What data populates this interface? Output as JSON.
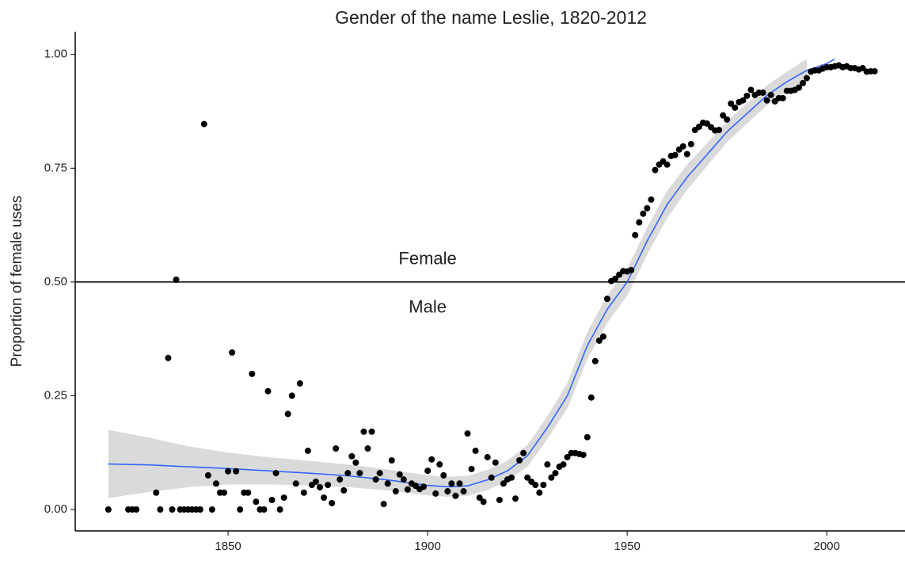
{
  "chart_data": {
    "type": "scatter",
    "title": "Gender of the name Leslie, 1820-2012",
    "y_label": "Proportion of female uses",
    "xlim": [
      1811.7,
      2019.6
    ],
    "ylim": [
      -0.047,
      1.05
    ],
    "xticks": [
      1850,
      1900,
      1950,
      2000
    ],
    "yticks": [
      {
        "value": 0,
        "label": "0.00"
      },
      {
        "value": 0.25,
        "label": "0.25"
      },
      {
        "value": 0.5,
        "label": "0.50"
      },
      {
        "value": 0.75,
        "label": "0.75"
      },
      {
        "value": 1,
        "label": "1.00"
      }
    ],
    "hline": {
      "value": 0.5,
      "above": "Female",
      "below": "Male",
      "at_x": 1900
    },
    "points": {
      "color": "#000000",
      "x": [
        1820,
        1825,
        1826,
        1827,
        1832,
        1833,
        1835,
        1836,
        1837,
        1838,
        1839,
        1840,
        1841,
        1842,
        1843,
        1844,
        1845,
        1846,
        1847,
        1848,
        1849,
        1850,
        1851,
        1852,
        1853,
        1854,
        1855,
        1856,
        1857,
        1858,
        1859,
        1860,
        1861,
        1862,
        1863,
        1864,
        1865,
        1866,
        1867,
        1868,
        1869,
        1870,
        1871,
        1872,
        1873,
        1874,
        1875,
        1876,
        1877,
        1878,
        1879,
        1880,
        1881,
        1882,
        1883,
        1884,
        1885,
        1886,
        1887,
        1888,
        1889,
        1890,
        1891,
        1892,
        1893,
        1894,
        1895,
        1896,
        1897,
        1898,
        1899,
        1900,
        1901,
        1902,
        1903,
        1904,
        1905,
        1906,
        1907,
        1908,
        1909,
        1910,
        1911,
        1912,
        1913,
        1914,
        1915,
        1916,
        1917,
        1918,
        1919,
        1920,
        1921,
        1922,
        1923,
        1924,
        1925,
        1926,
        1927,
        1928,
        1929,
        1930,
        1931,
        1932,
        1933,
        1934,
        1935,
        1936,
        1937,
        1938,
        1939,
        1940,
        1941,
        1942,
        1943,
        1944,
        1945,
        1946,
        1947,
        1948,
        1949,
        1950,
        1951,
        1952,
        1953,
        1954,
        1955,
        1956,
        1957,
        1958,
        1959,
        1960,
        1961,
        1962,
        1963,
        1964,
        1965,
        1966,
        1967,
        1968,
        1969,
        1970,
        1971,
        1972,
        1973,
        1974,
        1975,
        1976,
        1977,
        1978,
        1979,
        1980,
        1981,
        1982,
        1983,
        1984,
        1985,
        1986,
        1987,
        1988,
        1989,
        1990,
        1991,
        1992,
        1993,
        1994,
        1995,
        1996,
        1997,
        1998,
        1999,
        2000,
        2001,
        2002,
        2003,
        2004,
        2005,
        2006,
        2007,
        2008,
        2009,
        2010,
        2011,
        2012
      ],
      "values": [
        0,
        0,
        0,
        0,
        0.037,
        0,
        0.333,
        0,
        0.505,
        0,
        0,
        0,
        0,
        0,
        0,
        0.847,
        0.075,
        0,
        0.057,
        0.037,
        0.037,
        0.084,
        0.345,
        0.084,
        0,
        0.037,
        0.037,
        0.298,
        0.017,
        0,
        0,
        0.26,
        0.021,
        0.08,
        0,
        0.026,
        0.21,
        0.25,
        0.057,
        0.277,
        0.037,
        0.129,
        0.054,
        0.061,
        0.049,
        0.026,
        0.054,
        0.014,
        0.134,
        0.066,
        0.042,
        0.08,
        0.117,
        0.103,
        0.08,
        0.171,
        0.134,
        0.171,
        0.066,
        0.08,
        0.012,
        0.057,
        0.108,
        0.04,
        0.077,
        0.066,
        0.044,
        0.057,
        0.052,
        0.045,
        0.05,
        0.085,
        0.11,
        0.035,
        0.099,
        0.075,
        0.04,
        0.057,
        0.03,
        0.057,
        0.04,
        0.167,
        0.089,
        0.129,
        0.026,
        0.017,
        0.115,
        0.07,
        0.103,
        0.021,
        0.057,
        0.066,
        0.07,
        0.024,
        0.108,
        0.124,
        0.07,
        0.061,
        0.054,
        0.037,
        0.054,
        0.099,
        0.07,
        0.08,
        0.094,
        0.099,
        0.115,
        0.124,
        0.124,
        0.122,
        0.12,
        0.159,
        0.246,
        0.326,
        0.371,
        0.38,
        0.463,
        0.502,
        0.507,
        0.516,
        0.524,
        0.523,
        0.526,
        0.603,
        0.631,
        0.65,
        0.662,
        0.681,
        0.746,
        0.758,
        0.765,
        0.758,
        0.777,
        0.779,
        0.791,
        0.798,
        0.781,
        0.803,
        0.834,
        0.841,
        0.85,
        0.848,
        0.84,
        0.833,
        0.834,
        0.866,
        0.857,
        0.892,
        0.883,
        0.895,
        0.899,
        0.909,
        0.922,
        0.911,
        0.916,
        0.916,
        0.899,
        0.911,
        0.897,
        0.904,
        0.904,
        0.92,
        0.92,
        0.922,
        0.927,
        0.937,
        0.948,
        0.962,
        0.965,
        0.965,
        0.969,
        0.972,
        0.972,
        0.974,
        0.976,
        0.972,
        0.974,
        0.97,
        0.97,
        0.967,
        0.97,
        0.962,
        0.963,
        0.963
      ]
    },
    "fit": {
      "color": "#3366ff",
      "band_color": "#d4d4d4",
      "x": [
        1820,
        1830,
        1840,
        1850,
        1860,
        1870,
        1880,
        1890,
        1900,
        1905,
        1910,
        1915,
        1920,
        1925,
        1930,
        1935,
        1940,
        1945,
        1950,
        1955,
        1960,
        1965,
        1970,
        1975,
        1980,
        1985,
        1990,
        1995,
        2000,
        2002
      ],
      "values": [
        0.1,
        0.098,
        0.094,
        0.09,
        0.085,
        0.08,
        0.074,
        0.065,
        0.053,
        0.05,
        0.052,
        0.065,
        0.085,
        0.118,
        0.18,
        0.25,
        0.36,
        0.44,
        0.5,
        0.59,
        0.67,
        0.73,
        0.78,
        0.83,
        0.87,
        0.91,
        0.94,
        0.965,
        0.98,
        0.99
      ],
      "lower": [
        0.025,
        0.038,
        0.049,
        0.055,
        0.055,
        0.053,
        0.049,
        0.042,
        0.031,
        0.028,
        0.03,
        0.043,
        0.063,
        0.094,
        0.155,
        0.222,
        0.33,
        0.41,
        0.47,
        0.56,
        0.64,
        0.702,
        0.755,
        0.807,
        0.848,
        0.888,
        0.918,
        0.94,
        null,
        null
      ],
      "upper": [
        0.175,
        0.158,
        0.139,
        0.125,
        0.115,
        0.107,
        0.099,
        0.088,
        0.075,
        0.072,
        0.074,
        0.087,
        0.107,
        0.142,
        0.205,
        0.278,
        0.39,
        0.47,
        0.53,
        0.62,
        0.7,
        0.758,
        0.805,
        0.853,
        0.892,
        0.932,
        0.962,
        0.99,
        null,
        null
      ]
    }
  }
}
